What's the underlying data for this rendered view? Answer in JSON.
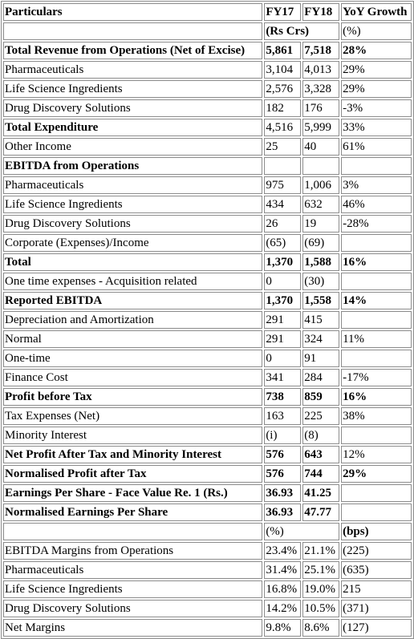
{
  "table": {
    "header": {
      "particulars": "Particulars",
      "fy17": "FY17",
      "fy18": "FY18",
      "yoy": "YoY Growth"
    },
    "rows": [
      {
        "label": "",
        "fy17": "(Rs Crs)",
        "fy18": "",
        "yoy": "(%)",
        "bold": false,
        "span": 1
      },
      {
        "label": "Total Revenue from Operations (Net of Excise)",
        "fy17": "5,861",
        "fy18": "7,518",
        "yoy": "28%",
        "bold": true
      },
      {
        "label": "Pharmaceuticals",
        "fy17": "3,104",
        "fy18": "4,013",
        "yoy": "29%",
        "bold": false
      },
      {
        "label": "Life Science Ingredients",
        "fy17": "2,576",
        "fy18": "3,328",
        "yoy": "29%",
        "bold": false
      },
      {
        "label": "Drug Discovery Solutions",
        "fy17": "182",
        "fy18": "176",
        "yoy": "-3%",
        "bold": false
      },
      {
        "label": "Total Expenditure",
        "fy17": "4,516",
        "fy18": "5,999",
        "yoy": "33%",
        "bold": "label"
      },
      {
        "label": "Other Income",
        "fy17": "25",
        "fy18": "40",
        "yoy": "61%",
        "bold": false
      },
      {
        "label": "EBITDA from Operations",
        "fy17": "",
        "fy18": "",
        "yoy": "",
        "bold": "label"
      },
      {
        "label": "Pharmaceuticals",
        "fy17": "975",
        "fy18": "1,006",
        "yoy": "3%",
        "bold": false
      },
      {
        "label": "Life Science Ingredients",
        "fy17": "434",
        "fy18": "632",
        "yoy": "46%",
        "bold": false
      },
      {
        "label": "Drug Discovery Solutions",
        "fy17": "26",
        "fy18": "19",
        "yoy": "-28%",
        "bold": false
      },
      {
        "label": "Corporate (Expenses)/Income",
        "fy17": "(65)",
        "fy18": "(69)",
        "yoy": "",
        "bold": false
      },
      {
        "label": "Total",
        "fy17": "1,370",
        "fy18": "1,588",
        "yoy": "16%",
        "bold": true
      },
      {
        "label": "One time expenses - Acquisition related",
        "fy17": "0",
        "fy18": "(30)",
        "yoy": "",
        "bold": false
      },
      {
        "label": "Reported EBITDA",
        "fy17": "1,370",
        "fy18": "1,558",
        "yoy": "14%",
        "bold": true
      },
      {
        "label": "Depreciation and Amortization",
        "fy17": "291",
        "fy18": "415",
        "yoy": "",
        "bold": false
      },
      {
        "label": "Normal",
        "fy17": "291",
        "fy18": "324",
        "yoy": "11%",
        "bold": false
      },
      {
        "label": "One-time",
        "fy17": "0",
        "fy18": "91",
        "yoy": "",
        "bold": false
      },
      {
        "label": "Finance Cost",
        "fy17": "341",
        "fy18": "284",
        "yoy": "-17%",
        "bold": false
      },
      {
        "label": "Profit before Tax",
        "fy17": "738",
        "fy18": "859",
        "yoy": "16%",
        "bold": true
      },
      {
        "label": "Tax Expenses (Net)",
        "fy17": "163",
        "fy18": "225",
        "yoy": "38%",
        "bold": false
      },
      {
        "label": "Minority Interest",
        "fy17": "(i)",
        "fy18": "(8)",
        "yoy": "",
        "bold": false
      },
      {
        "label": "Net Profit After Tax and Minority Interest",
        "fy17": "576",
        "fy18": "643",
        "yoy": "12%",
        "bold": "nopct"
      },
      {
        "label": "Normalised Profit after Tax",
        "fy17": "576",
        "fy18": "744",
        "yoy": "29%",
        "bold": true
      },
      {
        "label": "Earnings Per Share - Face Value Re. 1 (Rs.)",
        "fy17": "36.93",
        "fy18": "41.25",
        "yoy": "",
        "bold": true
      },
      {
        "label": "Normalised Earnings Per Share",
        "fy17": "36.93",
        "fy18": "47.77",
        "yoy": "",
        "bold": true
      },
      {
        "label": "",
        "fy17": "(%)",
        "fy18": "",
        "yoy": "(bps)",
        "bold": "yoy"
      },
      {
        "label": "EBITDA Margins from Operations",
        "fy17": "23.4%",
        "fy18": "21.1%",
        "yoy": "(225)",
        "bold": false
      },
      {
        "label": "Pharmaceuticals",
        "fy17": "31.4%",
        "fy18": "25.1%",
        "yoy": "(635)",
        "bold": false
      },
      {
        "label": "Life Science Ingredients",
        "fy17": "16.8%",
        "fy18": "19.0%",
        "yoy": "215",
        "bold": false
      },
      {
        "label": "Drug Discovery Solutions",
        "fy17": "14.2%",
        "fy18": "10.5%",
        "yoy": "(371)",
        "bold": false
      },
      {
        "label": "Net Margins",
        "fy17": "9.8%",
        "fy18": "8.6%",
        "yoy": "(127)",
        "bold": false
      }
    ]
  }
}
